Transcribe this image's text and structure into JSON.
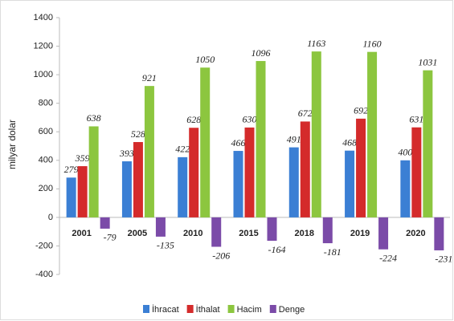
{
  "chart_data": {
    "type": "bar",
    "y_label": "milyar dolar",
    "categories": [
      "2001",
      "2005",
      "2010",
      "2015",
      "2018",
      "2019",
      "2020"
    ],
    "series": [
      {
        "name": "İhracat",
        "color": "#3b7fd4",
        "values": [
          279,
          393,
          422,
          466,
          491,
          468,
          400
        ]
      },
      {
        "name": "İthalat",
        "color": "#d42b2b",
        "values": [
          359,
          528,
          628,
          630,
          672,
          692,
          631
        ]
      },
      {
        "name": "Hacim",
        "color": "#8cc63f",
        "values": [
          638,
          921,
          1050,
          1096,
          1163,
          1160,
          1031
        ]
      },
      {
        "name": "Denge",
        "color": "#7b4ba8",
        "values": [
          -79,
          -135,
          -206,
          -164,
          -181,
          -224,
          -231
        ]
      }
    ],
    "ylim": [
      -400,
      1400
    ],
    "yticks": [
      -400,
      -200,
      0,
      200,
      400,
      600,
      800,
      1000,
      1200,
      1400
    ],
    "legend": "bottom"
  }
}
